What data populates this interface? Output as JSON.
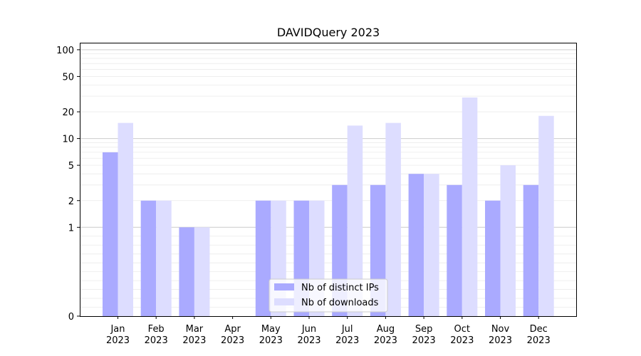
{
  "chart_data": {
    "type": "bar",
    "title": "DAVIDQuery 2023",
    "xlabel": "",
    "ylabel": "",
    "yscale": "symlog",
    "ylim": [
      0,
      120
    ],
    "yticks": [
      0,
      1,
      2,
      5,
      10,
      20,
      50,
      100
    ],
    "ytick_labels": [
      "0",
      "1",
      "2",
      "5",
      "10",
      "20",
      "50",
      "100"
    ],
    "categories": [
      "Jan",
      "Feb",
      "Mar",
      "Apr",
      "May",
      "Jun",
      "Jul",
      "Aug",
      "Sep",
      "Oct",
      "Nov",
      "Dec"
    ],
    "year_label": "2023",
    "grid": true,
    "legend_position": "bottom-center",
    "series": [
      {
        "name": "Nb of distinct IPs",
        "color": "#aaaaff",
        "values": [
          7,
          2,
          1,
          0,
          2,
          2,
          3,
          3,
          4,
          3,
          2,
          3
        ]
      },
      {
        "name": "Nb of downloads",
        "color": "#ddddff",
        "values": [
          15,
          2,
          1,
          0,
          2,
          2,
          14,
          15,
          4,
          29,
          5,
          18
        ]
      }
    ]
  }
}
